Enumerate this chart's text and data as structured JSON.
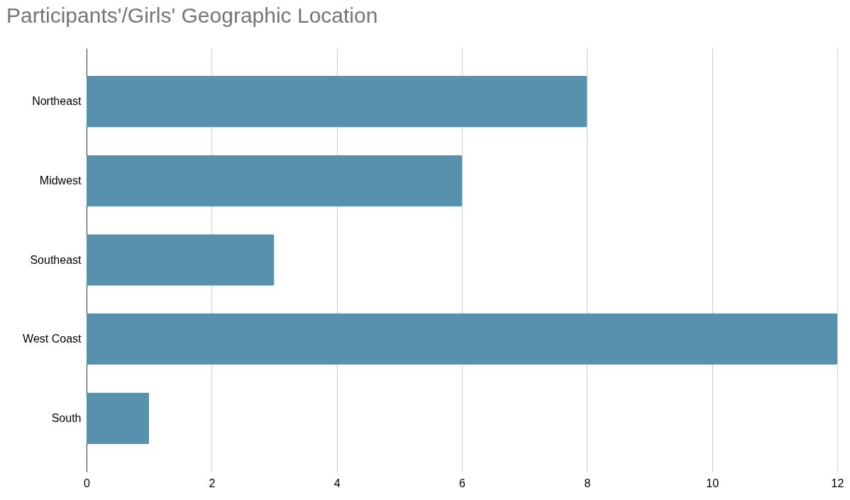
{
  "chart_data": {
    "type": "bar",
    "orientation": "horizontal",
    "title": "Participants'/Girls' Geographic Location",
    "categories": [
      "Northeast",
      "Midwest",
      "Southeast",
      "West Coast",
      "South"
    ],
    "values": [
      8,
      6,
      3,
      12,
      1
    ],
    "color": "#5891ae",
    "xlim": [
      0,
      12
    ],
    "xticks": [
      0,
      2,
      4,
      6,
      8,
      10,
      12
    ],
    "grid": "x"
  }
}
